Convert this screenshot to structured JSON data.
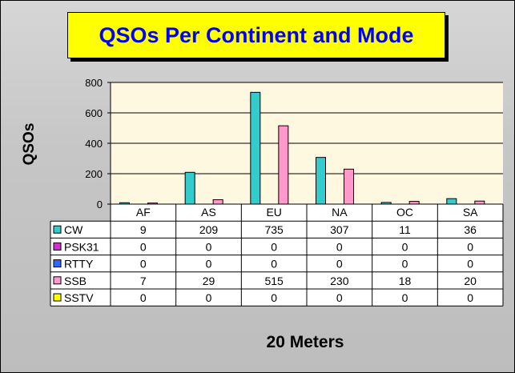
{
  "chart_data": {
    "type": "bar",
    "title": "QSOs Per Continent and Mode",
    "xlabel": "20 Meters",
    "ylabel": "QSOs",
    "ylim": [
      0,
      800
    ],
    "yticks": [
      "0",
      "200",
      "400",
      "600",
      "800"
    ],
    "grid": true,
    "categories": [
      "AF",
      "AS",
      "EU",
      "NA",
      "OC",
      "SA"
    ],
    "series": [
      {
        "name": "CW",
        "color": "#33cccc",
        "values": [
          9,
          209,
          735,
          307,
          11,
          36
        ]
      },
      {
        "name": "PSK31",
        "color": "#cc33cc",
        "values": [
          0,
          0,
          0,
          0,
          0,
          0
        ]
      },
      {
        "name": "RTTY",
        "color": "#3366ff",
        "values": [
          0,
          0,
          0,
          0,
          0,
          0
        ]
      },
      {
        "name": "SSB",
        "color": "#ff99cc",
        "values": [
          7,
          29,
          515,
          230,
          18,
          20
        ]
      },
      {
        "name": "SSTV",
        "color": "#ffff00",
        "values": [
          0,
          0,
          0,
          0,
          0,
          0
        ]
      }
    ]
  }
}
